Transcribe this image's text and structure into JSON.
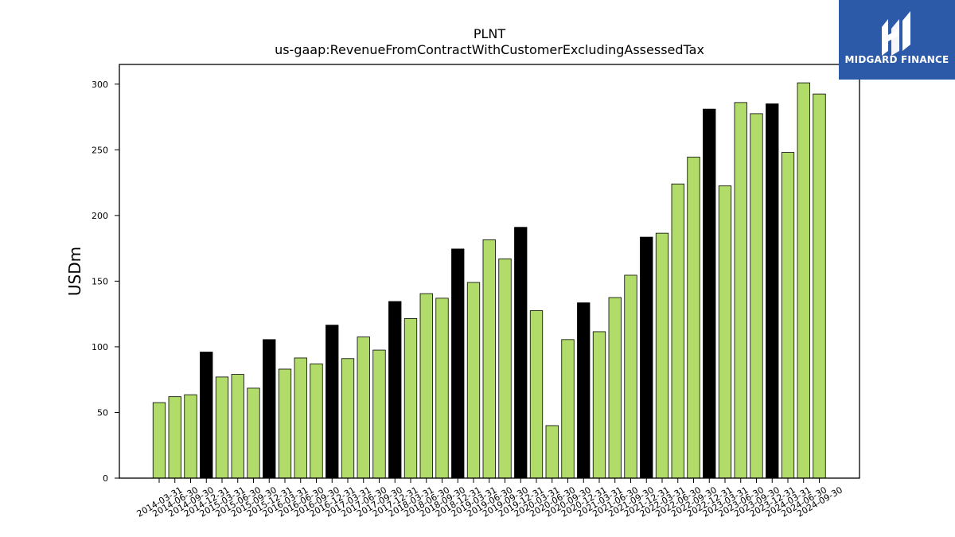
{
  "brand": {
    "name": "MIDGARD FINANCE",
    "icon": "midgard-logo-icon",
    "background": "#2d5aa8"
  },
  "chart_data": {
    "type": "bar",
    "title": "PLNT",
    "subtitle": "us-gaap:RevenueFromContractWithCustomerExcludingAssessedTax",
    "ylabel": "USDm",
    "xlabel": "",
    "ylim": [
      0,
      315
    ],
    "yticks": [
      0,
      50,
      100,
      150,
      200,
      250,
      300
    ],
    "grid": false,
    "colors": {
      "quarter": "#b1dc6a",
      "year_end": "#000000",
      "edge": "#000000"
    },
    "categories": [
      "2014-03-31",
      "2014-06-30",
      "2014-09-30",
      "2014-12-31",
      "2015-03-31",
      "2015-06-30",
      "2015-09-30",
      "2015-12-31",
      "2016-03-31",
      "2016-06-30",
      "2016-09-30",
      "2016-12-31",
      "2017-03-31",
      "2017-06-30",
      "2017-09-30",
      "2017-12-31",
      "2018-03-31",
      "2018-06-30",
      "2018-09-30",
      "2018-12-31",
      "2019-03-31",
      "2019-06-30",
      "2019-09-30",
      "2019-12-31",
      "2020-03-31",
      "2020-06-30",
      "2020-09-30",
      "2020-12-31",
      "2021-03-31",
      "2021-06-30",
      "2021-09-30",
      "2021-12-31",
      "2022-03-31",
      "2022-06-30",
      "2022-09-30",
      "2022-12-31",
      "2023-03-31",
      "2023-06-30",
      "2023-09-30",
      "2023-12-31",
      "2024-03-31",
      "2024-06-30",
      "2024-09-30"
    ],
    "values": [
      57.5,
      62,
      63.5,
      96,
      77,
      79,
      68.5,
      105.5,
      83,
      91.5,
      87,
      116.5,
      91,
      107.5,
      97.5,
      134.5,
      121.5,
      140.5,
      137,
      174.5,
      149,
      181.5,
      167,
      191,
      127.5,
      40,
      105.5,
      133.5,
      111.5,
      137.5,
      154.5,
      183.5,
      186.5,
      224,
      244.5,
      281,
      222.5,
      286,
      277.5,
      285,
      248,
      301,
      292.5
    ]
  }
}
